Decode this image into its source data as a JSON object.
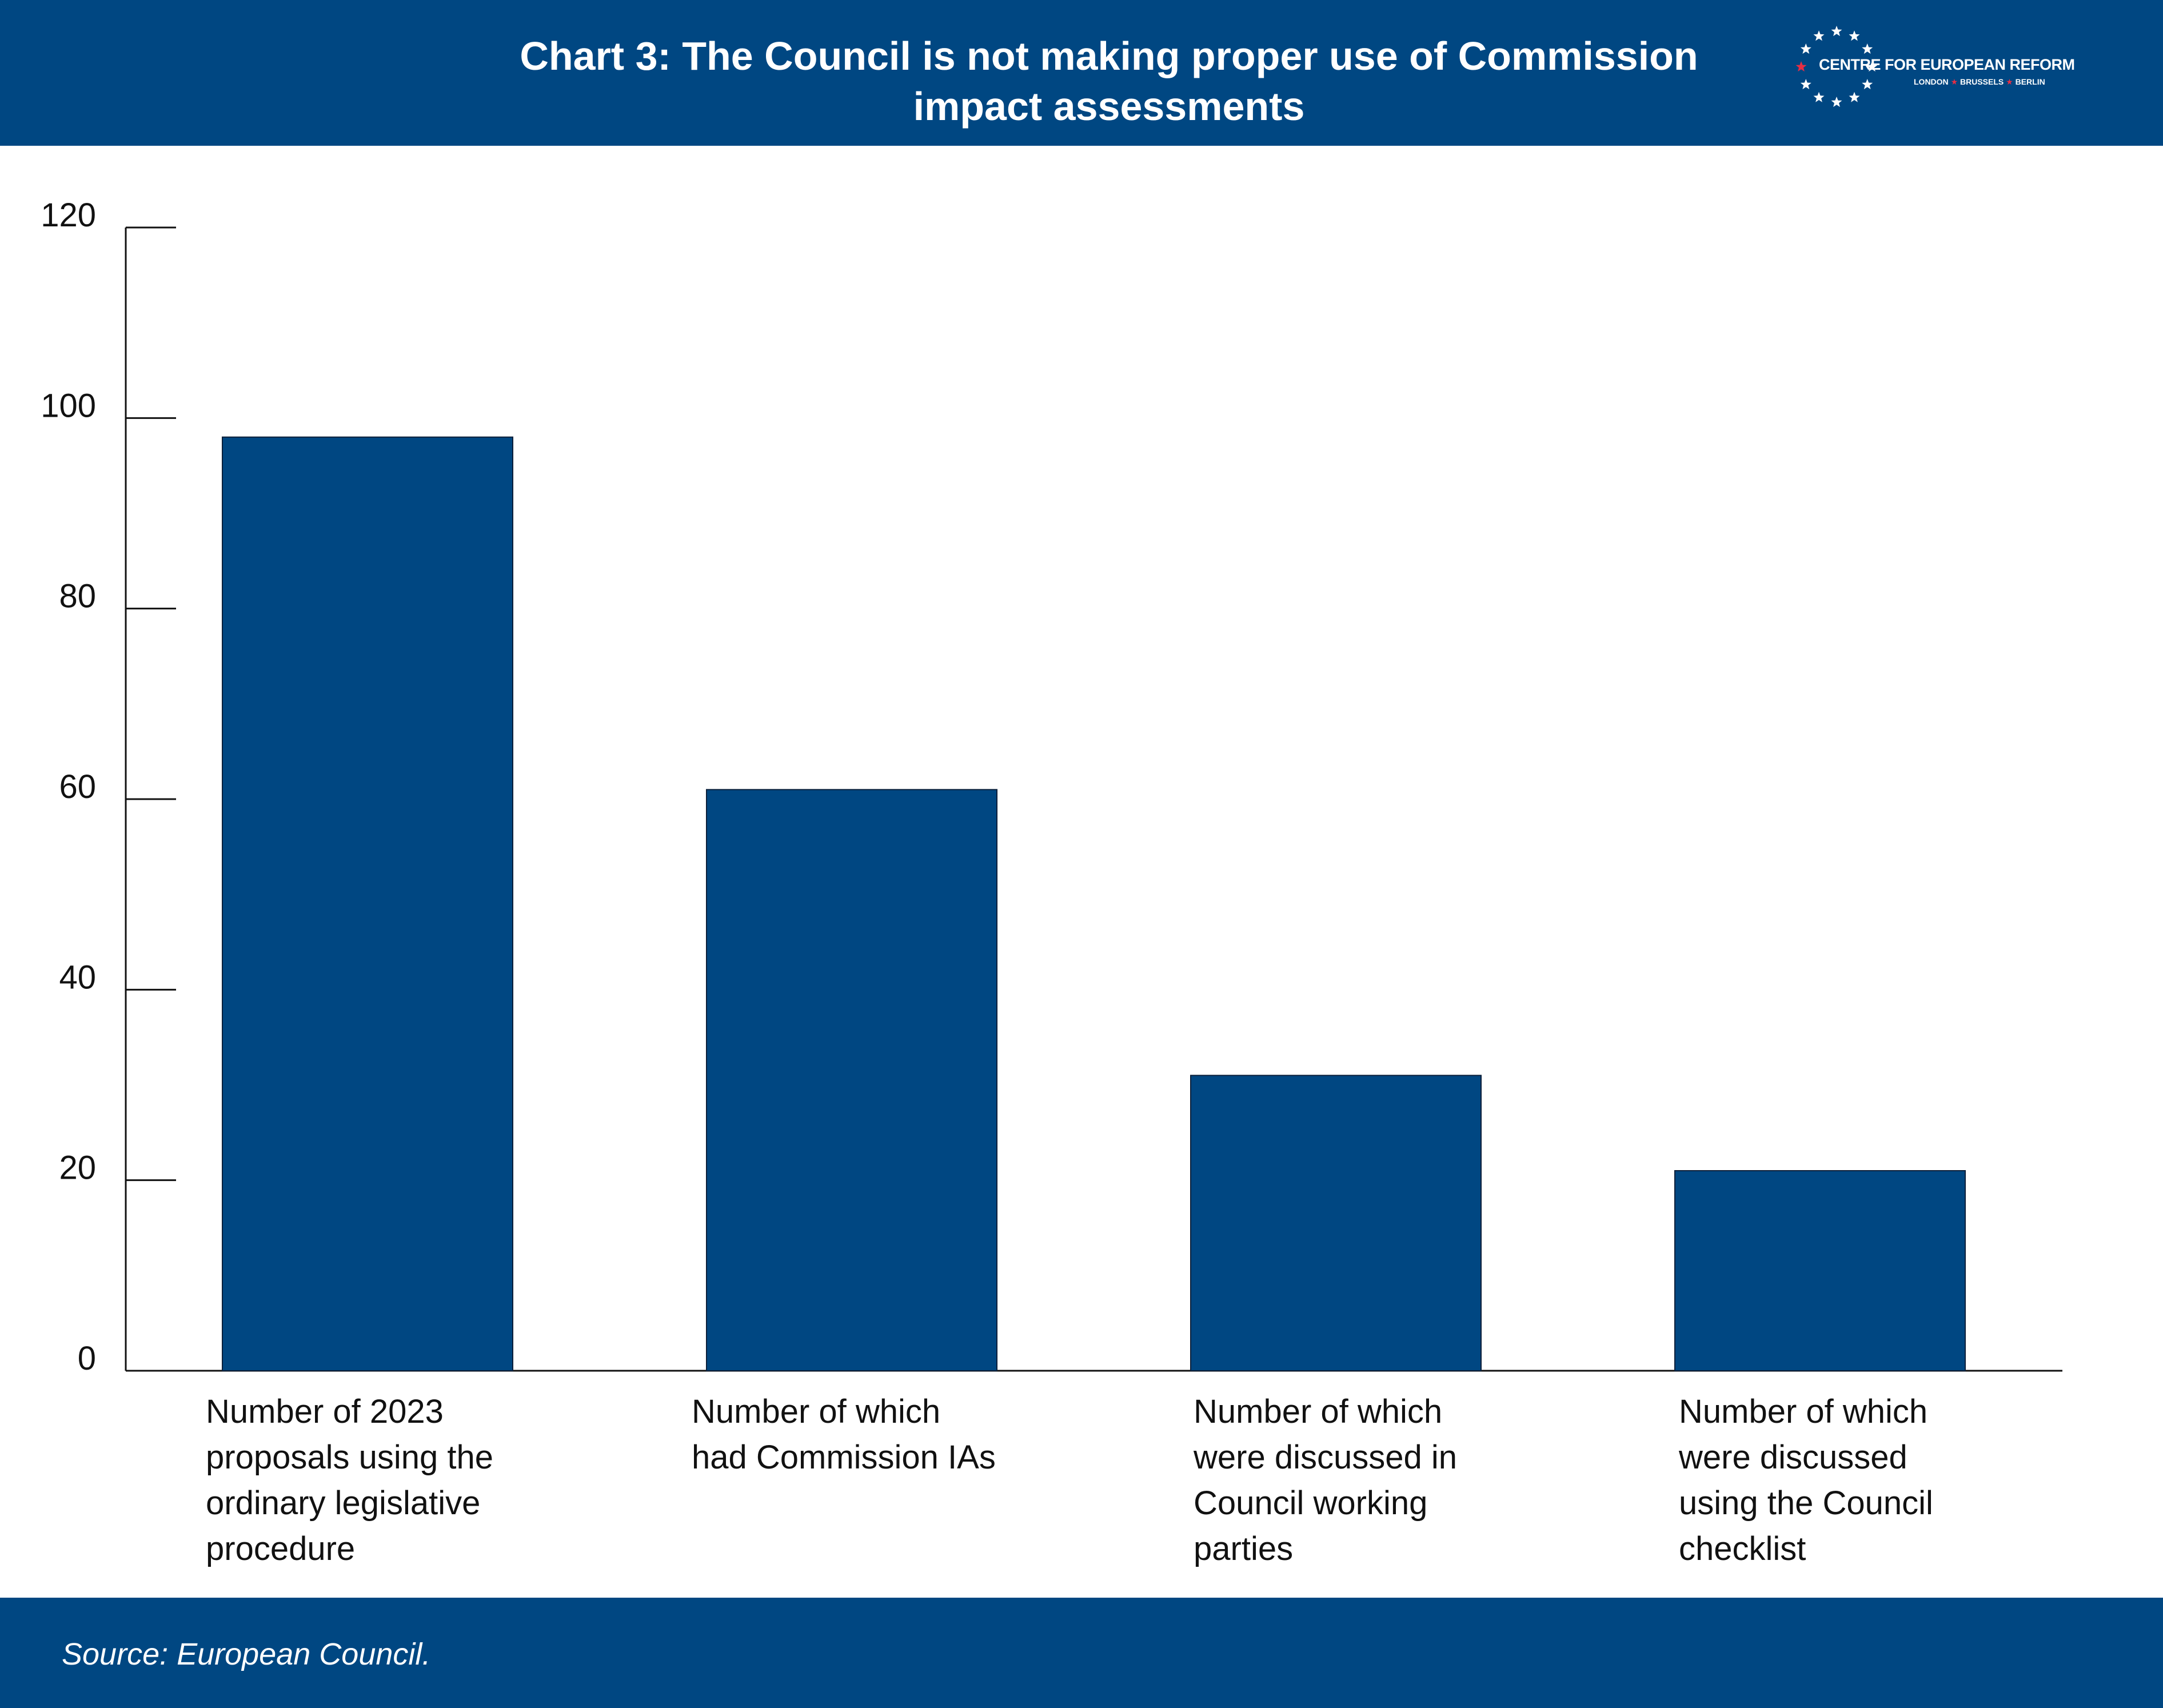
{
  "header": {
    "title_line1": "Chart 3: The Council is not making proper use of Commission",
    "title_line2": "impact assessments",
    "logo_name": "CENTRE FOR EUROPEAN REFORM",
    "logo_city_1": "LONDON",
    "logo_city_2": "BRUSSELS",
    "logo_city_3": "BERLIN"
  },
  "footer": {
    "source": "Source: European Council."
  },
  "colors": {
    "brand": "#004782",
    "bar": "#004782",
    "logo_accent": "#e62e44"
  },
  "chart_data": {
    "type": "bar",
    "title": "Chart 3: The Council is not making proper use of Commission impact assessments",
    "xlabel": "",
    "ylabel": "",
    "ylim": [
      0,
      120
    ],
    "yticks": [
      0,
      20,
      40,
      60,
      80,
      100,
      120
    ],
    "grid": false,
    "legend": "none",
    "categories": [
      [
        "Number of 2023",
        "proposals using the",
        "ordinary legislative",
        "procedure"
      ],
      [
        "Number of which",
        "had Commission IAs"
      ],
      [
        "Number of which",
        "were discussed in",
        "Council working",
        "parties"
      ],
      [
        "Number of which",
        "were discussed",
        "using the Council",
        "checklist"
      ]
    ],
    "values": [
      98,
      61,
      31,
      21
    ]
  }
}
